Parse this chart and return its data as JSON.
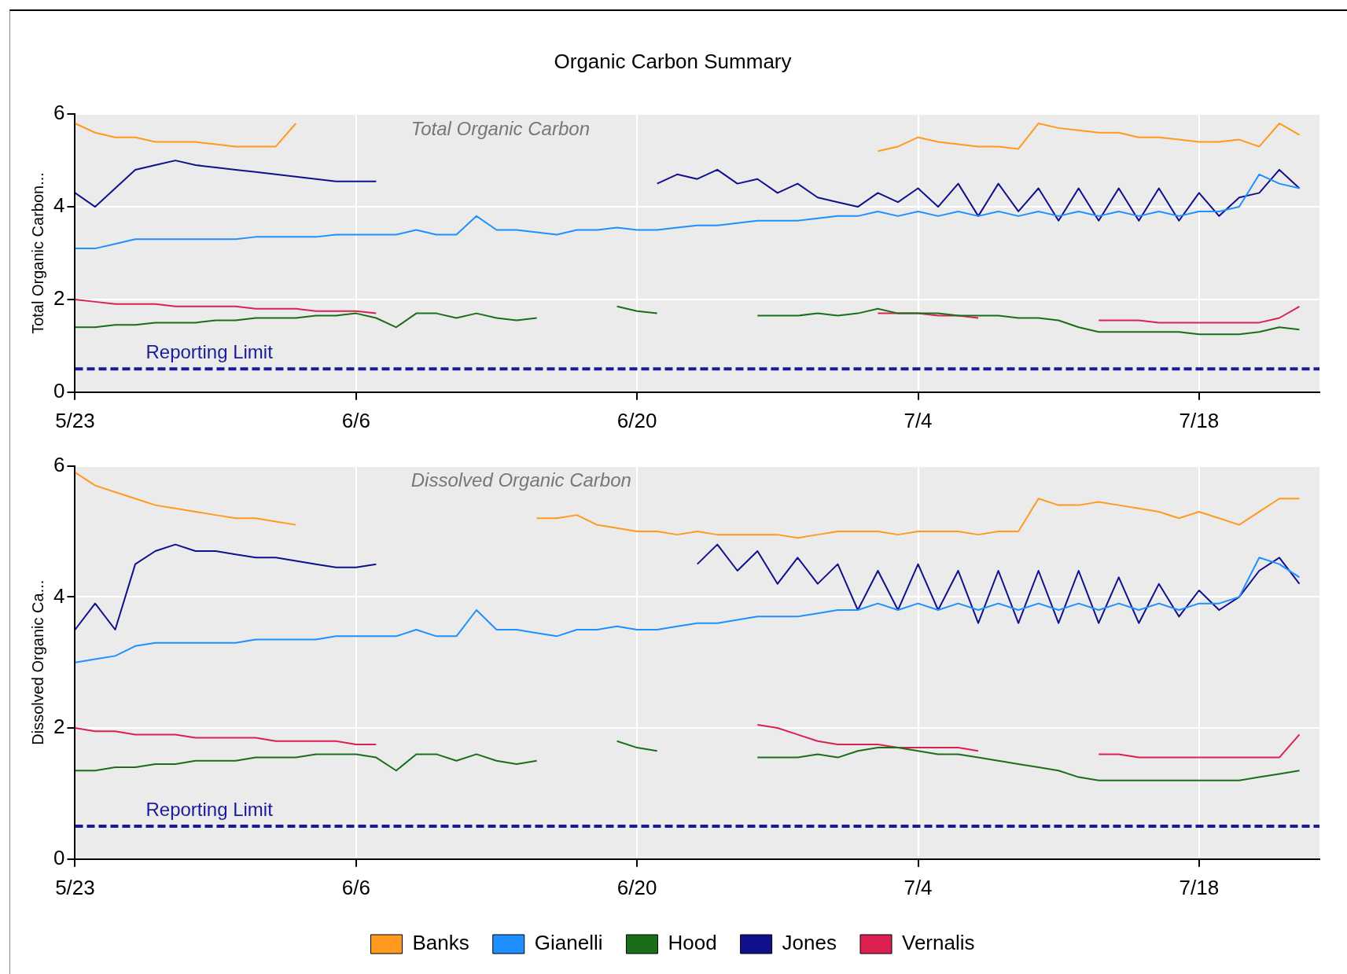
{
  "chart_data": [
    {
      "type": "line",
      "title": "Organic Carbon Summary",
      "ylabel": "Total Organic Carbon...",
      "annotations": [
        "Total Organic Carbon"
      ],
      "x": [
        "--05-23",
        "--05-24",
        "--05-25",
        "--05-26",
        "--05-27",
        "--05-28",
        "--05-29",
        "--05-30",
        "--05-31",
        "--06-01",
        "--06-02",
        "--06-03",
        "--06-04",
        "--06-05",
        "--06-06",
        "--06-07",
        "--06-08",
        "--06-09",
        "--06-10",
        "--06-11",
        "--06-12",
        "--06-13",
        "--06-14",
        "--06-15",
        "--06-16",
        "--06-17",
        "--06-18",
        "--06-19",
        "--06-20",
        "--06-21",
        "--06-22",
        "--06-23",
        "--06-24",
        "--06-25",
        "--06-26",
        "--06-27",
        "--06-28",
        "--06-29",
        "--06-30",
        "--07-01",
        "--07-02",
        "--07-03",
        "--07-04",
        "--07-05",
        "--07-06",
        "--07-07",
        "--07-08",
        "--07-09",
        "--07-10",
        "--07-11",
        "--07-12",
        "--07-13",
        "--07-14",
        "--07-15",
        "--07-16",
        "--07-17",
        "--07-18",
        "--07-19",
        "--07-20",
        "--07-21",
        "--07-22",
        "--07-23"
      ],
      "xlim": [
        "--05-23",
        "--07-24"
      ],
      "xticks": [
        {
          "value": "--05-23",
          "label": "5/23"
        },
        {
          "value": "--06-06",
          "label": "6/6"
        },
        {
          "value": "--06-20",
          "label": "6/20"
        },
        {
          "value": "--07-04",
          "label": "7/4"
        },
        {
          "value": "--07-18",
          "label": "7/18"
        }
      ],
      "ylim": [
        0,
        6
      ],
      "yticks": [
        0,
        2,
        4,
        6
      ],
      "grid": true,
      "legend": false,
      "ref_lines": [
        {
          "axis": "y",
          "value": 0.5,
          "label": "Reporting Limit",
          "color": "#1a1a9a",
          "line_style": "dashed"
        }
      ],
      "series": [
        {
          "color": "#ff9a1f",
          "values": [
            5.8,
            5.6,
            5.5,
            5.5,
            5.4,
            5.4,
            5.4,
            5.35,
            5.3,
            5.3,
            5.3,
            5.8,
            null,
            null,
            null,
            null,
            null,
            null,
            null,
            null,
            null,
            null,
            null,
            null,
            null,
            null,
            null,
            null,
            null,
            null,
            null,
            null,
            null,
            null,
            null,
            null,
            null,
            null,
            null,
            null,
            5.2,
            5.3,
            5.5,
            5.4,
            5.35,
            5.3,
            5.3,
            5.25,
            5.8,
            5.7,
            5.65,
            5.6,
            5.6,
            5.5,
            5.5,
            5.45,
            5.4,
            5.4,
            5.45,
            5.3,
            5.8,
            5.55
          ]
        },
        {
          "color": "#1e90ff",
          "values": [
            3.1,
            3.1,
            3.2,
            3.3,
            3.3,
            3.3,
            3.3,
            3.3,
            3.3,
            3.35,
            3.35,
            3.35,
            3.35,
            3.4,
            3.4,
            3.4,
            3.4,
            3.5,
            3.4,
            3.4,
            3.8,
            3.5,
            3.5,
            3.45,
            3.4,
            3.5,
            3.5,
            3.55,
            3.5,
            3.5,
            3.55,
            3.6,
            3.6,
            3.65,
            3.7,
            3.7,
            3.7,
            3.75,
            3.8,
            3.8,
            3.9,
            3.8,
            3.9,
            3.8,
            3.9,
            3.8,
            3.9,
            3.8,
            3.9,
            3.8,
            3.9,
            3.8,
            3.9,
            3.8,
            3.9,
            3.8,
            3.9,
            3.9,
            4.0,
            4.7,
            4.5,
            4.4
          ]
        },
        {
          "color": "#1a6e1a",
          "values": [
            1.4,
            1.4,
            1.45,
            1.45,
            1.5,
            1.5,
            1.5,
            1.55,
            1.55,
            1.6,
            1.6,
            1.6,
            1.65,
            1.65,
            1.7,
            1.6,
            1.4,
            1.7,
            1.7,
            1.6,
            1.7,
            1.6,
            1.55,
            1.6,
            null,
            null,
            null,
            1.85,
            1.75,
            1.7,
            null,
            null,
            null,
            null,
            1.65,
            1.65,
            1.65,
            1.7,
            1.65,
            1.7,
            1.8,
            1.7,
            1.7,
            1.7,
            1.65,
            1.65,
            1.65,
            1.6,
            1.6,
            1.55,
            1.4,
            1.3,
            1.3,
            1.3,
            1.3,
            1.3,
            1.25,
            1.25,
            1.25,
            1.3,
            1.4,
            1.35
          ]
        },
        {
          "color": "#10108c",
          "values": [
            4.3,
            4.0,
            4.4,
            4.8,
            4.9,
            5.0,
            4.9,
            4.85,
            4.8,
            4.75,
            4.7,
            4.65,
            4.6,
            4.55,
            4.55,
            4.55,
            null,
            null,
            null,
            null,
            null,
            null,
            null,
            null,
            null,
            null,
            null,
            null,
            null,
            4.5,
            4.7,
            4.6,
            4.8,
            4.5,
            4.6,
            4.3,
            4.5,
            4.2,
            4.1,
            4.0,
            4.3,
            4.1,
            4.4,
            4.0,
            4.5,
            3.8,
            4.5,
            3.9,
            4.4,
            3.7,
            4.4,
            3.7,
            4.4,
            3.7,
            4.4,
            3.7,
            4.3,
            3.8,
            4.2,
            4.3,
            4.8,
            4.4
          ]
        },
        {
          "color": "#dc2050",
          "values": [
            2.0,
            1.95,
            1.9,
            1.9,
            1.9,
            1.85,
            1.85,
            1.85,
            1.85,
            1.8,
            1.8,
            1.8,
            1.75,
            1.75,
            1.75,
            1.7,
            null,
            null,
            null,
            null,
            null,
            null,
            null,
            null,
            null,
            null,
            null,
            null,
            null,
            null,
            null,
            null,
            null,
            null,
            null,
            null,
            null,
            null,
            null,
            null,
            1.7,
            1.7,
            1.7,
            1.65,
            1.65,
            1.6,
            null,
            null,
            null,
            null,
            null,
            1.55,
            1.55,
            1.55,
            1.5,
            1.5,
            1.5,
            1.5,
            1.5,
            1.5,
            1.6,
            1.85
          ]
        }
      ]
    },
    {
      "type": "line",
      "ylabel": "Dissolved Organic Ca...",
      "annotations": [
        "Dissolved Organic Carbon"
      ],
      "x": [
        "--05-23",
        "--05-24",
        "--05-25",
        "--05-26",
        "--05-27",
        "--05-28",
        "--05-29",
        "--05-30",
        "--05-31",
        "--06-01",
        "--06-02",
        "--06-03",
        "--06-04",
        "--06-05",
        "--06-06",
        "--06-07",
        "--06-08",
        "--06-09",
        "--06-10",
        "--06-11",
        "--06-12",
        "--06-13",
        "--06-14",
        "--06-15",
        "--06-16",
        "--06-17",
        "--06-18",
        "--06-19",
        "--06-20",
        "--06-21",
        "--06-22",
        "--06-23",
        "--06-24",
        "--06-25",
        "--06-26",
        "--06-27",
        "--06-28",
        "--06-29",
        "--06-30",
        "--07-01",
        "--07-02",
        "--07-03",
        "--07-04",
        "--07-05",
        "--07-06",
        "--07-07",
        "--07-08",
        "--07-09",
        "--07-10",
        "--07-11",
        "--07-12",
        "--07-13",
        "--07-14",
        "--07-15",
        "--07-16",
        "--07-17",
        "--07-18",
        "--07-19",
        "--07-20",
        "--07-21",
        "--07-22",
        "--07-23"
      ],
      "xlim": [
        "--05-23",
        "--07-24"
      ],
      "xticks": [
        {
          "value": "--05-23",
          "label": "5/23"
        },
        {
          "value": "--06-06",
          "label": "6/6"
        },
        {
          "value": "--06-20",
          "label": "6/20"
        },
        {
          "value": "--07-04",
          "label": "7/4"
        },
        {
          "value": "--07-18",
          "label": "7/18"
        }
      ],
      "ylim": [
        0,
        6
      ],
      "yticks": [
        0,
        2,
        4,
        6
      ],
      "grid": true,
      "legend": "bottom",
      "ref_lines": [
        {
          "axis": "y",
          "value": 0.5,
          "label": "Reporting Limit",
          "color": "#1a1a9a",
          "line_style": "dashed"
        }
      ],
      "series": [
        {
          "name": "Banks",
          "color": "#ff9a1f",
          "values": [
            5.9,
            5.7,
            5.6,
            5.5,
            5.4,
            5.35,
            5.3,
            5.25,
            5.2,
            5.2,
            5.15,
            5.1,
            null,
            null,
            null,
            null,
            null,
            null,
            null,
            null,
            null,
            null,
            null,
            5.2,
            5.2,
            5.25,
            5.1,
            5.05,
            5.0,
            5.0,
            4.95,
            5.0,
            4.95,
            4.95,
            4.95,
            4.95,
            4.9,
            4.95,
            5.0,
            5.0,
            5.0,
            4.95,
            5.0,
            5.0,
            5.0,
            4.95,
            5.0,
            5.0,
            5.5,
            5.4,
            5.4,
            5.45,
            5.4,
            5.35,
            5.3,
            5.2,
            5.3,
            5.2,
            5.1,
            5.3,
            5.5,
            5.5
          ]
        },
        {
          "name": "Gianelli",
          "color": "#1e90ff",
          "values": [
            3.0,
            3.05,
            3.1,
            3.25,
            3.3,
            3.3,
            3.3,
            3.3,
            3.3,
            3.35,
            3.35,
            3.35,
            3.35,
            3.4,
            3.4,
            3.4,
            3.4,
            3.5,
            3.4,
            3.4,
            3.8,
            3.5,
            3.5,
            3.45,
            3.4,
            3.5,
            3.5,
            3.55,
            3.5,
            3.5,
            3.55,
            3.6,
            3.6,
            3.65,
            3.7,
            3.7,
            3.7,
            3.75,
            3.8,
            3.8,
            3.9,
            3.8,
            3.9,
            3.8,
            3.9,
            3.8,
            3.9,
            3.8,
            3.9,
            3.8,
            3.9,
            3.8,
            3.9,
            3.8,
            3.9,
            3.8,
            3.9,
            3.9,
            4.0,
            4.6,
            4.5,
            4.3
          ]
        },
        {
          "name": "Hood",
          "color": "#1a6e1a",
          "values": [
            1.35,
            1.35,
            1.4,
            1.4,
            1.45,
            1.45,
            1.5,
            1.5,
            1.5,
            1.55,
            1.55,
            1.55,
            1.6,
            1.6,
            1.6,
            1.55,
            1.35,
            1.6,
            1.6,
            1.5,
            1.6,
            1.5,
            1.45,
            1.5,
            null,
            null,
            null,
            1.8,
            1.7,
            1.65,
            null,
            null,
            null,
            null,
            1.55,
            1.55,
            1.55,
            1.6,
            1.55,
            1.65,
            1.7,
            1.7,
            1.65,
            1.6,
            1.6,
            1.55,
            1.5,
            1.45,
            1.4,
            1.35,
            1.25,
            1.2,
            1.2,
            1.2,
            1.2,
            1.2,
            1.2,
            1.2,
            1.2,
            1.25,
            1.3,
            1.35
          ]
        },
        {
          "name": "Jones",
          "color": "#10108c",
          "values": [
            3.5,
            3.9,
            3.5,
            4.5,
            4.7,
            4.8,
            4.7,
            4.7,
            4.65,
            4.6,
            4.6,
            4.55,
            4.5,
            4.45,
            4.45,
            4.5,
            null,
            null,
            null,
            null,
            null,
            null,
            null,
            null,
            null,
            null,
            null,
            null,
            null,
            null,
            null,
            4.5,
            4.8,
            4.4,
            4.7,
            4.2,
            4.6,
            4.2,
            4.5,
            3.8,
            4.4,
            3.8,
            4.5,
            3.8,
            4.4,
            3.6,
            4.4,
            3.6,
            4.4,
            3.6,
            4.4,
            3.6,
            4.3,
            3.6,
            4.2,
            3.7,
            4.1,
            3.8,
            4.0,
            4.4,
            4.6,
            4.2
          ]
        },
        {
          "name": "Vernalis",
          "color": "#dc2050",
          "values": [
            2.0,
            1.95,
            1.95,
            1.9,
            1.9,
            1.9,
            1.85,
            1.85,
            1.85,
            1.85,
            1.8,
            1.8,
            1.8,
            1.8,
            1.75,
            1.75,
            null,
            null,
            null,
            null,
            null,
            null,
            null,
            null,
            null,
            null,
            null,
            null,
            null,
            null,
            null,
            null,
            null,
            null,
            2.05,
            2.0,
            1.9,
            1.8,
            1.75,
            1.75,
            1.75,
            1.7,
            1.7,
            1.7,
            1.7,
            1.65,
            null,
            null,
            null,
            null,
            null,
            1.6,
            1.6,
            1.55,
            1.55,
            1.55,
            1.55,
            1.55,
            1.55,
            1.55,
            1.55,
            1.9
          ]
        }
      ]
    }
  ]
}
